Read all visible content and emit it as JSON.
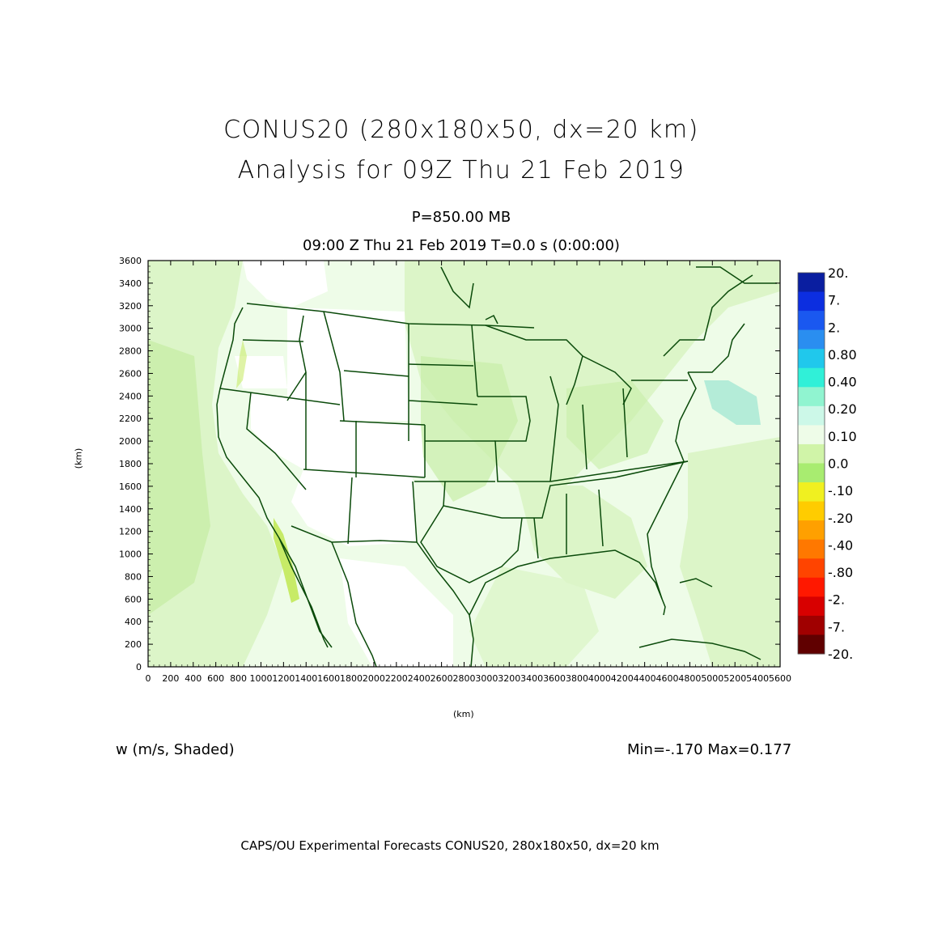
{
  "header": {
    "title_line1": "CONUS20 (280x180x50, dx=20 km)",
    "title_line2": "Analysis for 09Z Thu 21 Feb 2019",
    "level": "P=850.00 MB",
    "valid_time": "09:00 Z Thu 21 Feb 2019    T=0.0 s (0:00:00)"
  },
  "axes": {
    "x_unit": "(km)",
    "y_unit": "(km)",
    "x_ticks": [
      "0",
      "200",
      "400",
      "600",
      "800",
      "1000",
      "1200",
      "1400",
      "1600",
      "1800",
      "2000",
      "2200",
      "2400",
      "2600",
      "2800",
      "3000",
      "3200",
      "3400",
      "3600",
      "3800",
      "4000",
      "4200",
      "4400",
      "4600",
      "4800",
      "5000",
      "5200",
      "5400",
      "5600"
    ],
    "y_ticks": [
      "0",
      "200",
      "400",
      "600",
      "800",
      "1000",
      "1200",
      "1400",
      "1600",
      "1800",
      "2000",
      "2200",
      "2400",
      "2600",
      "2800",
      "3000",
      "3200",
      "3400",
      "3600"
    ],
    "x_range": [
      0,
      5600
    ],
    "y_range": [
      0,
      3600
    ]
  },
  "colorbar": {
    "labels": [
      "20.",
      "7.",
      "2.",
      "0.80",
      "0.40",
      "0.20",
      "0.10",
      "0.0",
      "-.10",
      "-.20",
      "-.40",
      "-.80",
      "-2.",
      "-7.",
      "-20."
    ],
    "colors": [
      "#0a1ea0",
      "#0c2ee0",
      "#1a58f0",
      "#2a8ef0",
      "#20c8ec",
      "#30f0d8",
      "#90f4d0",
      "#ccf8e8",
      "#eefce8",
      "#d0f4a8",
      "#a8ec70",
      "#f0f020",
      "#ffcc00",
      "#ffa000",
      "#ff7800",
      "#ff4400",
      "#ff1800",
      "#d80000",
      "#a00000",
      "#600000"
    ]
  },
  "field": {
    "variable": "w (m/s, Shaded)",
    "stats": "Min=-.170  Max=0.177",
    "colors": {
      "base": "#eefce8",
      "light_green": "#dcf5c8",
      "mid_green": "#c8eea8",
      "land_white": "#ffffff",
      "teal": "#b4ecd8",
      "yellow_green": "#c0e850",
      "boundary": "#0a4a0a"
    }
  },
  "credit": "CAPS/OU Experimental Forecasts  CONUS20, 280x180x50, dx=20 km"
}
